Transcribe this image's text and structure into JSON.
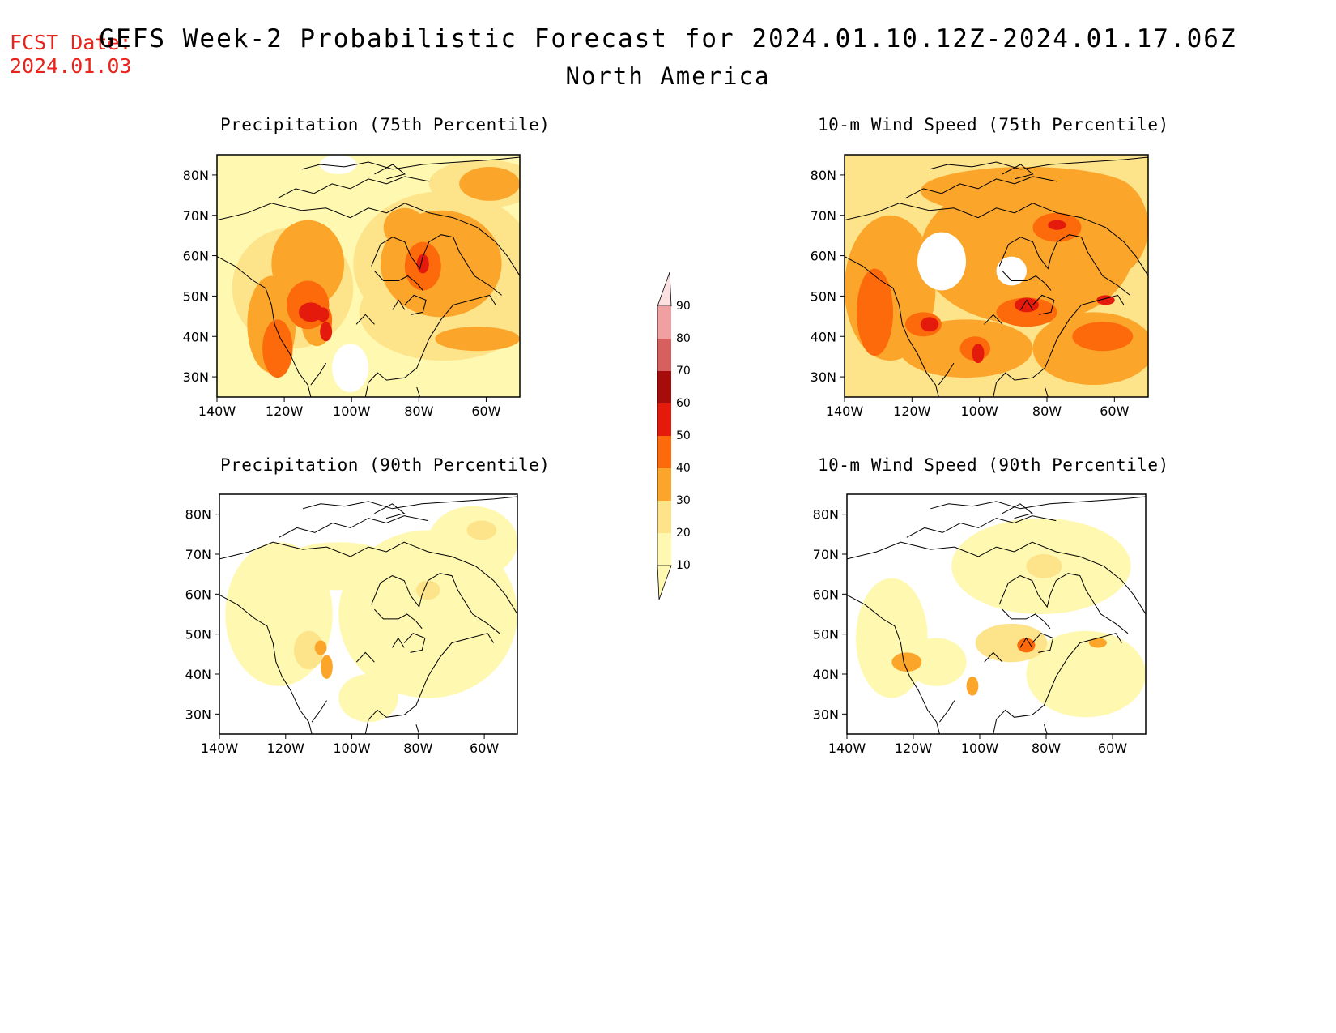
{
  "header": {
    "fcst_label": "FCST Date:",
    "fcst_date": "2024.01.03",
    "title": "GEFS Week-2 Probabilistic Forecast for 2024.01.10.12Z-2024.01.17.06Z",
    "subtitle": "North America"
  },
  "panels": [
    {
      "key": "p75",
      "title": "Precipitation (75th Percentile)"
    },
    {
      "key": "w75",
      "title": "10-m Wind Speed (75th Percentile)"
    },
    {
      "key": "p90",
      "title": "Precipitation (90th Percentile)"
    },
    {
      "key": "w90",
      "title": "10-m Wind Speed (90th Percentile)"
    }
  ],
  "axes": {
    "lat_labels": [
      "30N",
      "40N",
      "50N",
      "60N",
      "70N",
      "80N"
    ],
    "lon_labels": [
      "140W",
      "120W",
      "100W",
      "80W",
      "60W"
    ],
    "lat_range": [
      25,
      85
    ],
    "lon_range": [
      -140,
      -50
    ]
  },
  "colorbar": {
    "levels": [
      "10",
      "20",
      "30",
      "40",
      "50",
      "60",
      "70",
      "80",
      "90"
    ],
    "colors": [
      "#fff8b0",
      "#fde38a",
      "#fba52a",
      "#fd6a0c",
      "#e31a0c",
      "#a60c0a",
      "#d66060",
      "#f0a0a0",
      "#fde0e0"
    ]
  }
}
